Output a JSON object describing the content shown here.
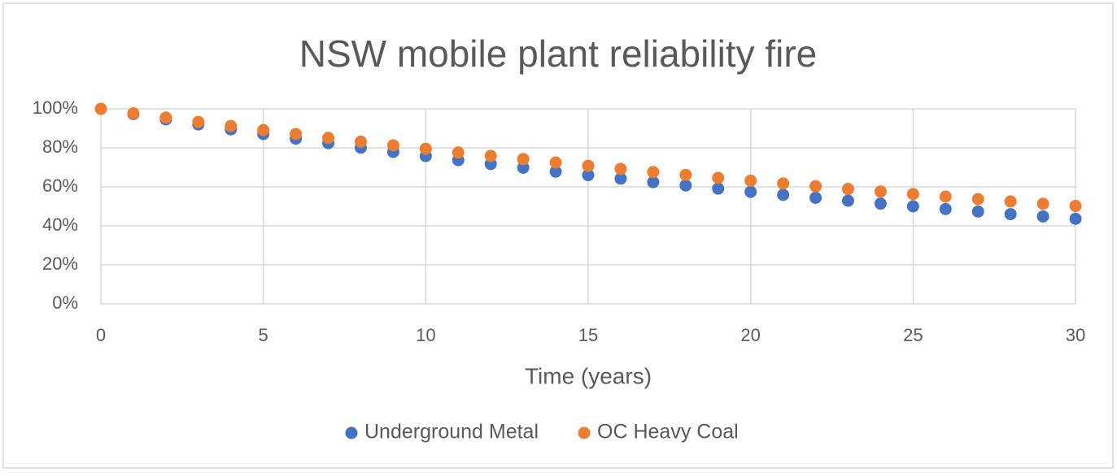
{
  "chart_data": {
    "type": "scatter",
    "title": "NSW mobile plant reliability fire",
    "x_label": "Time (years)",
    "x": [
      0,
      1,
      2,
      3,
      4,
      5,
      6,
      7,
      8,
      9,
      10,
      11,
      12,
      13,
      14,
      15,
      16,
      17,
      18,
      19,
      20,
      21,
      22,
      23,
      24,
      25,
      26,
      27,
      28,
      29,
      30
    ],
    "series": [
      {
        "name": "Underground Metal",
        "color": "#4472c4",
        "values": [
          100,
          97.3,
          94.6,
          92.0,
          89.5,
          87.1,
          84.7,
          82.4,
          80.1,
          77.9,
          75.8,
          73.7,
          71.7,
          69.8,
          67.8,
          66.0,
          64.2,
          62.4,
          60.7,
          59.1,
          57.4,
          55.9,
          54.4,
          52.9,
          51.4,
          50.0,
          48.6,
          47.3,
          46.0,
          44.8,
          43.6
        ]
      },
      {
        "name": "OC Heavy Coal",
        "color": "#ed7d31",
        "values": [
          100,
          97.7,
          95.5,
          93.3,
          91.2,
          89.1,
          87.1,
          85.1,
          83.2,
          81.3,
          79.5,
          77.6,
          75.9,
          74.2,
          72.5,
          70.8,
          69.2,
          67.6,
          66.1,
          64.6,
          63.1,
          61.7,
          60.3,
          58.9,
          57.6,
          56.3,
          55.0,
          53.7,
          52.5,
          51.3,
          50.2
        ]
      }
    ],
    "xlim": [
      0,
      30
    ],
    "xticks": [
      0,
      5,
      10,
      15,
      20,
      25,
      30
    ],
    "ylim": [
      0,
      100
    ],
    "yticks": [
      {
        "value": 0,
        "label": "0%"
      },
      {
        "value": 20,
        "label": "20%"
      },
      {
        "value": 40,
        "label": "40%"
      },
      {
        "value": 60,
        "label": "60%"
      },
      {
        "value": 80,
        "label": "80%"
      },
      {
        "value": 100,
        "label": "100%"
      }
    ],
    "grid": true,
    "legend": "bottom"
  }
}
